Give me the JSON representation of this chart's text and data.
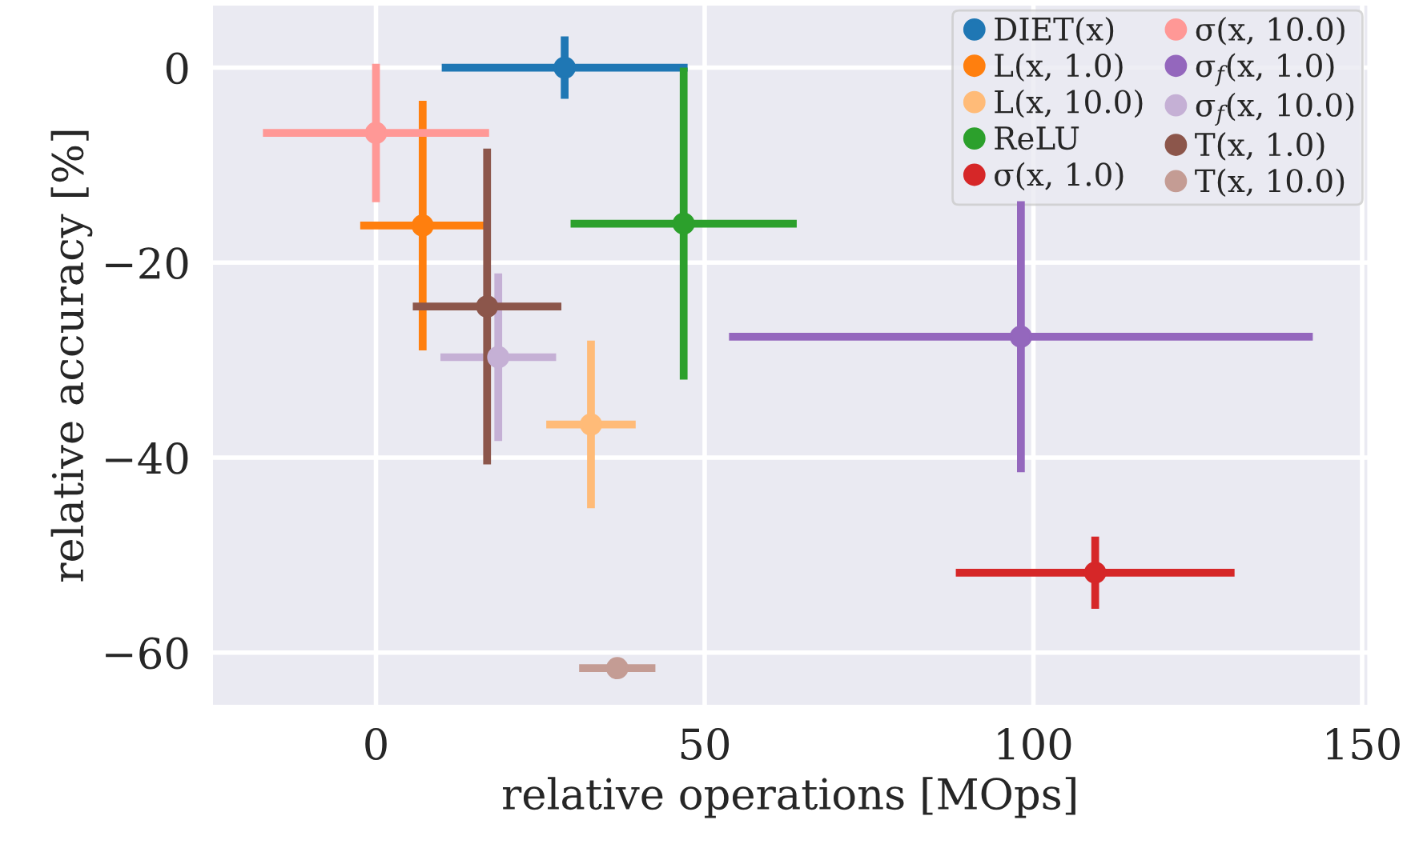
{
  "chart_data": {
    "type": "scatter",
    "xlabel": "relative operations [MOps]",
    "ylabel": "relative accuracy [%]",
    "xlim": [
      -25,
      151
    ],
    "ylim": [
      -65.5,
      6.5
    ],
    "xticks": [
      0,
      50,
      100,
      150
    ],
    "yticks": [
      -60,
      -40,
      -20,
      0
    ],
    "grid": true,
    "legend": "top right",
    "marker": "circle",
    "series": [
      {
        "name": "DIET(x)",
        "color": "#1f77b4",
        "x": [
          28.7
        ],
        "values": [
          0
        ],
        "xerrors": [
          18.7
        ],
        "errors": [
          3.2
        ]
      },
      {
        "name": "L(x, 1.0)",
        "color": "#ff7f0e",
        "x": [
          7.1
        ],
        "values": [
          -16.2
        ],
        "xerrors": [
          9.5
        ],
        "errors": [
          12.8
        ]
      },
      {
        "name": "L(x, 10.0)",
        "color": "#ffbb78",
        "x": [
          32.7
        ],
        "values": [
          -36.6
        ],
        "xerrors": [
          6.8
        ],
        "errors": [
          8.6
        ]
      },
      {
        "name": "ReLU",
        "color": "#2ca02c",
        "x": [
          46.8
        ],
        "values": [
          -16.0
        ],
        "xerrors": [
          17.2
        ],
        "errors": [
          16.0
        ]
      },
      {
        "name": "σ(x, 1.0)",
        "color": "#d62728",
        "x": [
          109.4
        ],
        "values": [
          -51.8
        ],
        "xerrors": [
          21.2
        ],
        "errors": [
          3.7
        ]
      },
      {
        "name": "σ(x, 10.0)",
        "color": "#ff9896",
        "x": [
          0
        ],
        "values": [
          -6.7
        ],
        "xerrors": [
          17.2
        ],
        "errors": [
          7.1
        ]
      },
      {
        "name": "σ$_{f}$(x, 1.0)",
        "color": "#9467bd",
        "x": [
          98.1
        ],
        "values": [
          -27.6
        ],
        "xerrors": [
          44.4
        ],
        "errors": [
          13.9
        ]
      },
      {
        "name": "σ$_{f}$(x, 10.0)",
        "color": "#c5b0d5",
        "x": [
          18.6
        ],
        "values": [
          -29.7
        ],
        "xerrors": [
          8.8
        ],
        "errors": [
          8.6
        ]
      },
      {
        "name": "T(x, 1.0)",
        "color": "#8c564b",
        "x": [
          16.9
        ],
        "values": [
          -24.5
        ],
        "xerrors": [
          11.3
        ],
        "errors": [
          16.2
        ]
      },
      {
        "name": "T(x, 10.0)",
        "color": "#c49c94",
        "x": [
          36.7
        ],
        "values": [
          -61.6
        ],
        "xerrors": [
          5.8
        ],
        "errors": [
          null
        ]
      }
    ]
  }
}
